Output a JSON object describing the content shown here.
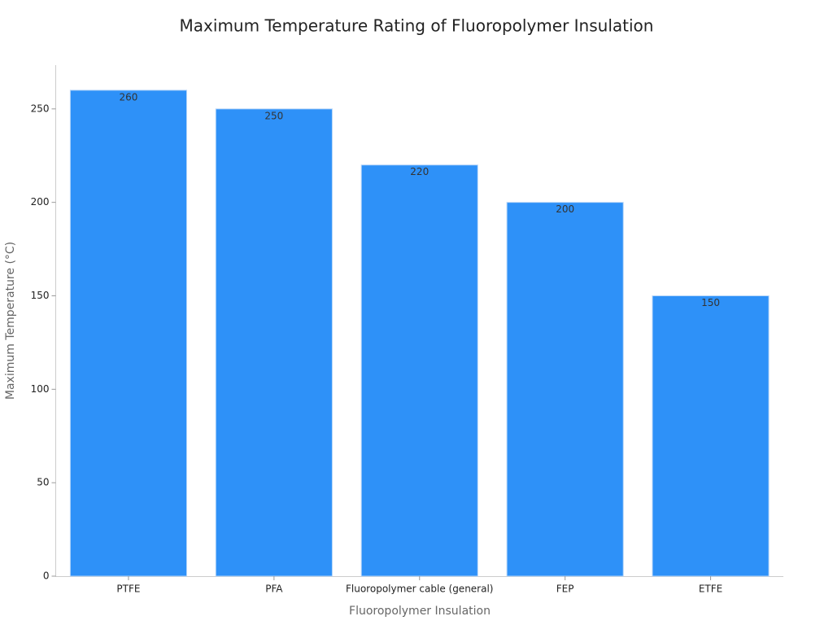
{
  "chart_data": {
    "type": "bar",
    "title": "Maximum Temperature Rating of Fluoropolymer Insulation",
    "x_label": "Fluoropolymer Insulation",
    "y_label": "Maximum Temperature (°C)",
    "categories": [
      "PTFE",
      "PFA",
      "Fluoropolymer cable (general)",
      "FEP",
      "ETFE"
    ],
    "values": [
      260,
      250,
      220,
      200,
      150
    ],
    "color": "#2e91f8",
    "ylim": [
      0,
      273
    ],
    "yticks": [
      0,
      50,
      100,
      150,
      200,
      250
    ],
    "grid": false
  }
}
